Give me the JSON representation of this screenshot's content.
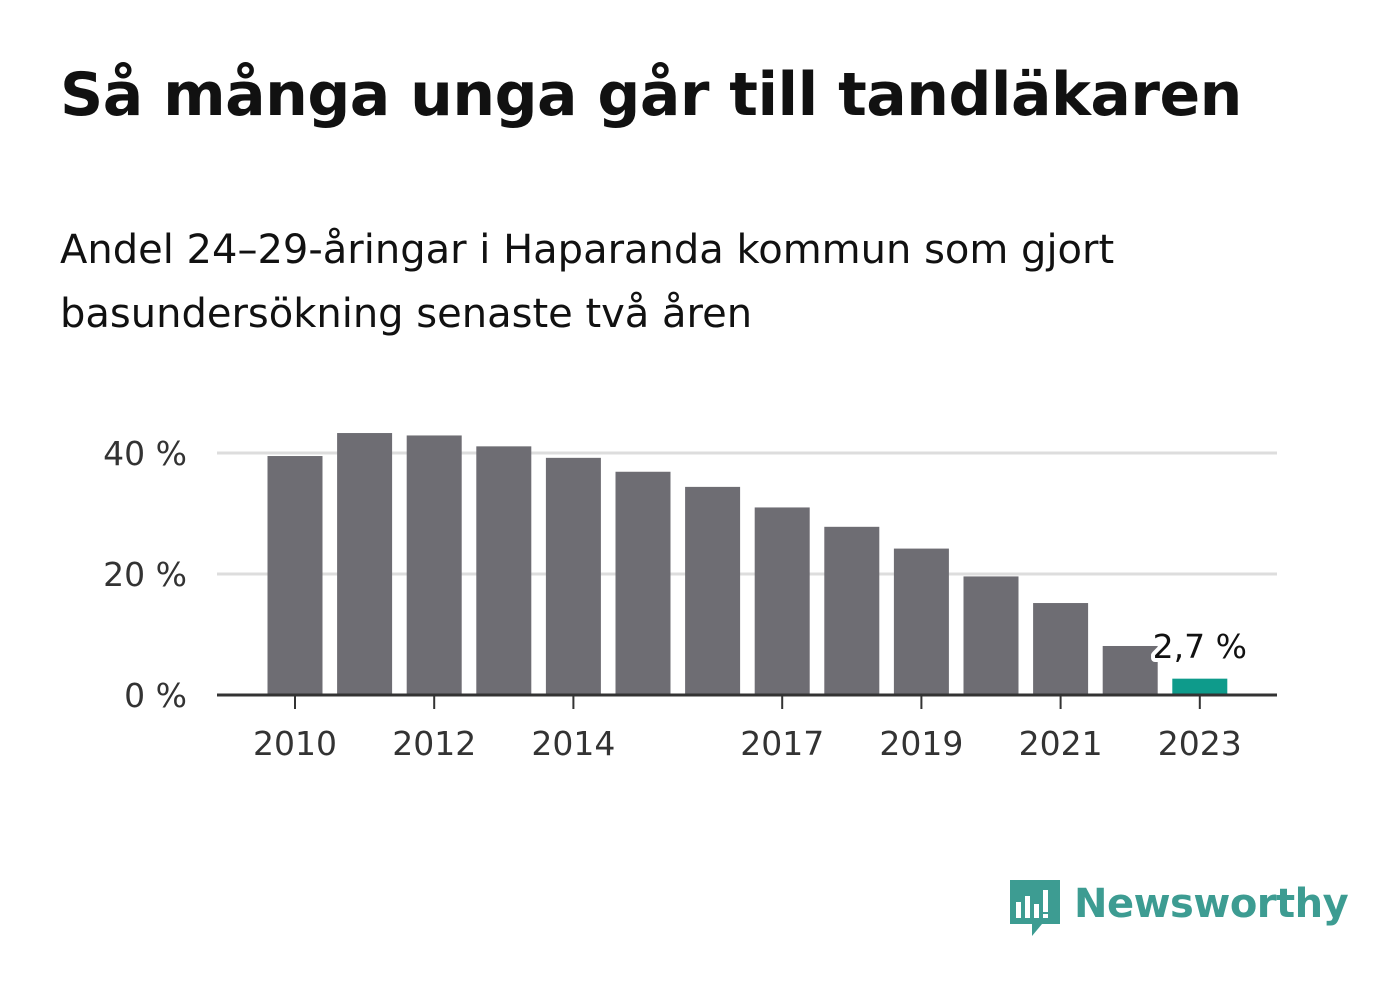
{
  "title": "Så många unga går till tandläkaren",
  "subtitle": "Andel 24–29-åringar i Haparanda kommun som gjort basundersökning senaste två åren",
  "brand": {
    "name": "Newsworthy",
    "icon": "newsworthy-logo-icon",
    "color": "#3d9c92"
  },
  "chart_data": {
    "type": "bar",
    "title": "Så många unga går till tandläkaren",
    "xlabel": "",
    "ylabel": "",
    "categories": [
      "2010",
      "2011",
      "2012",
      "2013",
      "2014",
      "2015",
      "2016",
      "2017",
      "2018",
      "2019",
      "2020",
      "2021",
      "2022",
      "2023"
    ],
    "x_tick_labels": [
      "2010",
      "2012",
      "2014",
      "2017",
      "2019",
      "2021",
      "2023"
    ],
    "values": [
      39.5,
      43.3,
      42.9,
      41.1,
      39.2,
      36.9,
      34.4,
      31.0,
      27.8,
      24.2,
      19.6,
      15.2,
      8.1,
      2.7
    ],
    "ylim": [
      0,
      45
    ],
    "y_ticks": [
      0,
      20,
      40
    ],
    "y_tick_labels": [
      "0 %",
      "20 %",
      "40 %"
    ],
    "grid": true,
    "highlight": {
      "category": "2023",
      "label": "2,7 %"
    },
    "colors": {
      "bar": "#6e6d73",
      "highlight": "#0e9b8b",
      "grid": "#dddddd",
      "axis": "#333333"
    }
  }
}
